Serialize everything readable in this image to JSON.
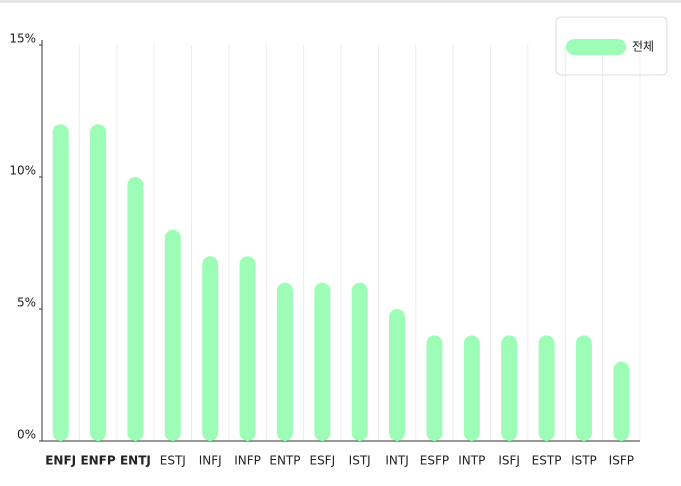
{
  "chart_data": {
    "type": "bar",
    "categories": [
      "ENFJ",
      "ENFP",
      "ENTJ",
      "ESTJ",
      "INFJ",
      "INFP",
      "ENTP",
      "ESFJ",
      "ISTJ",
      "INTJ",
      "ESFP",
      "INTP",
      "ISFJ",
      "ESTP",
      "ISTP",
      "ISFP"
    ],
    "series": [
      {
        "name": "전체",
        "color": "#9dfdb6",
        "values": [
          12,
          12,
          10,
          8,
          7,
          7,
          6,
          6,
          6,
          5,
          4,
          4,
          4,
          4,
          4,
          3
        ]
      }
    ],
    "ylim": [
      0,
      15
    ],
    "yticks": [
      {
        "value": 0,
        "label": "0%"
      },
      {
        "value": 5,
        "label": "5%"
      },
      {
        "value": 10,
        "label": "10%"
      },
      {
        "value": 15,
        "label": "15%"
      }
    ],
    "grid": true,
    "legend": "top-right"
  }
}
